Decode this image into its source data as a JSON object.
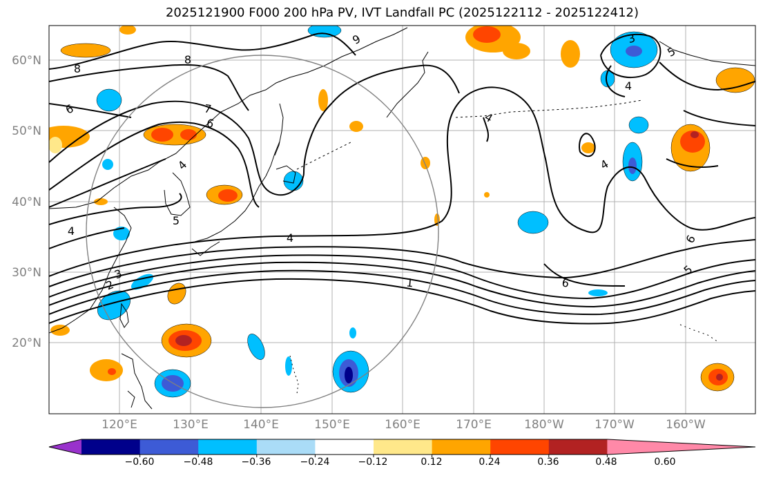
{
  "title": "2025121900 F000 200 hPa PV, IVT Landfall PC (2025122112 - 2025122412)",
  "lat_labels": [
    "60°N",
    "50°N",
    "40°N",
    "30°N",
    "20°N"
  ],
  "lon_labels": [
    "120°E",
    "130°E",
    "140°E",
    "150°E",
    "160°E",
    "170°E",
    "180°W",
    "170°W",
    "160°W"
  ],
  "contour_labels": [
    "8",
    "8",
    "9",
    "7",
    "6",
    "4",
    "5",
    "4",
    "4",
    "3",
    "2",
    "1",
    "6",
    "4",
    "4",
    "6",
    "5",
    "3",
    "5",
    "6",
    "4"
  ],
  "colorbar": {
    "tick_labels": [
      "−0.60",
      "−0.48",
      "−0.36",
      "−0.24",
      "−0.12",
      "0.12",
      "0.24",
      "0.36",
      "0.48",
      "0.60"
    ],
    "colors": [
      "#9932cc",
      "#00008b",
      "#3d5bd6",
      "#00bfff",
      "#aadcf7",
      "#ffffff",
      "#ffe88a",
      "#ffa500",
      "#ff4500",
      "#b22222",
      "#ff89a8"
    ]
  }
}
